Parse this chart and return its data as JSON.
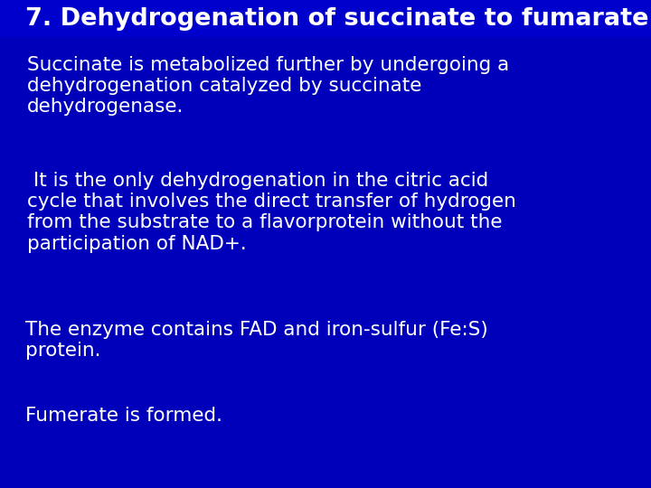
{
  "background_color": "#0000BB",
  "title_text": "7. Dehydrogenation of succinate to fumarate",
  "title_color": "#FFFFFF",
  "title_fontsize": 19.5,
  "body_color": "#FFFFFF",
  "body_fontsize": 15.5,
  "para1": "Succinate is metabolized further by undergoing a\ndehydrogenation catalyzed by succinate\ndehydrogenase.",
  "para2": " It is the only dehydrogenation in the citric acid\ncycle that involves the direct transfer of hydrogen\nfrom the substrate to a flavorprotein without the\nparticipation of NAD+.",
  "para3": "The enzyme contains FAD and iron-sulfur (Fe:S)\nprotein.",
  "para4": "Fumerate is formed."
}
